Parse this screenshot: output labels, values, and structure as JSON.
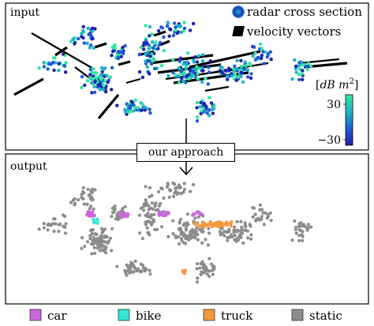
{
  "panels": {
    "input": {
      "label": "input"
    },
    "output": {
      "label": "output"
    }
  },
  "approach": {
    "label": "our approach"
  },
  "input_legend": {
    "rcs": "radar cross section",
    "velocity": "velocity vectors"
  },
  "colorbar": {
    "unit_open": "[",
    "unit_main": "dB m",
    "unit_sup": "2",
    "unit_close": "]",
    "ticks": [
      "30",
      "−30"
    ],
    "colors": [
      "#2ee8a0",
      "#20b0c8",
      "#1e5ad8",
      "#1a20a8"
    ]
  },
  "classes": [
    {
      "name": "car",
      "color": "#cc66dd"
    },
    {
      "name": "bike",
      "color": "#33e6d6"
    },
    {
      "name": "truck",
      "color": "#f59a3c"
    },
    {
      "name": "static",
      "color": "#8c8c8c"
    }
  ],
  "colors": {
    "rcs_high": "#2ee8a0",
    "rcs_low": "#1a20a8",
    "velocity": "#000000"
  }
}
